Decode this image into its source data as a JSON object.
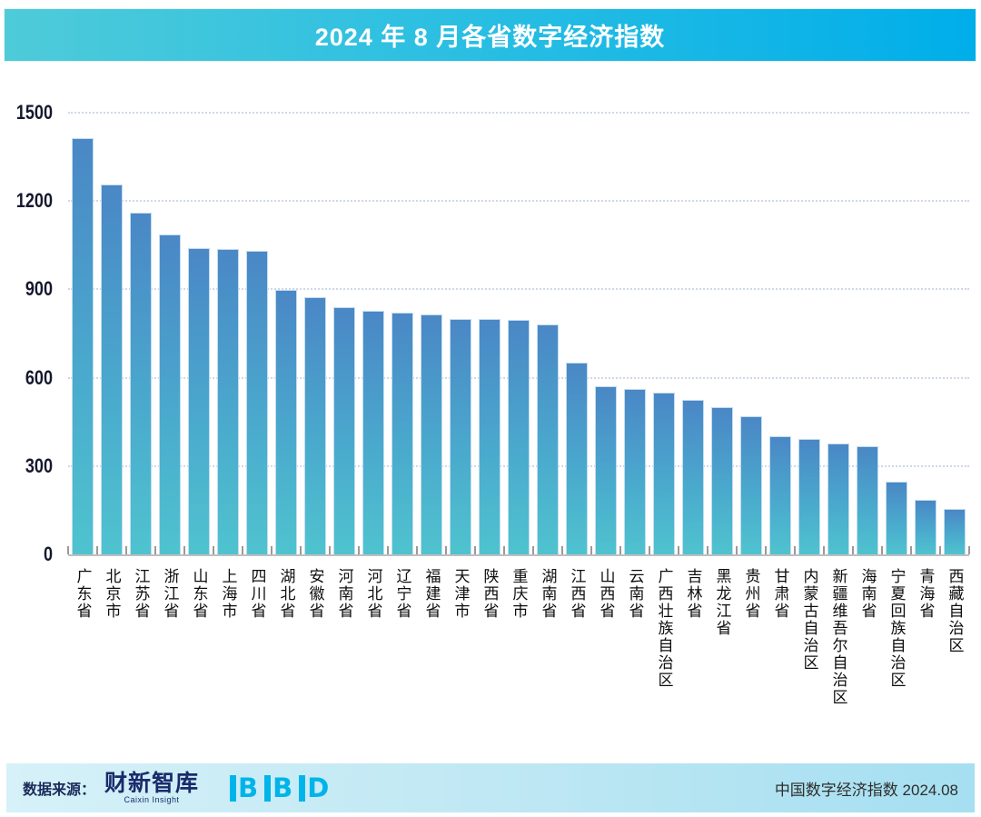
{
  "title": "2024 年 8 月各省数字经济指数",
  "footer": {
    "source_label": "数据来源：",
    "caixin_logo_cn": "财新智库",
    "caixin_logo_en": "Caixin Insight",
    "bbd_letters": [
      "B",
      "B",
      "D"
    ],
    "right_text": "中国数字经济指数 2024.08"
  },
  "colors": {
    "title_gradient_left": "#4ecbd9",
    "title_gradient_right": "#00aee9",
    "bar_top": "#4a87c6",
    "bar_bottom": "#4fc3cf",
    "gridline": "#c7d2e6",
    "footer_bg_left": "#d6f1f8",
    "footer_bg_right": "#a5dff1",
    "caixin_navy": "#1b2a6b",
    "bbd_cyan": "#00b4ea"
  },
  "chart_data": {
    "type": "bar",
    "title": "2024 年 8 月各省数字经济指数",
    "categories": [
      "广东省",
      "北京市",
      "江苏省",
      "浙江省",
      "山东省",
      "上海市",
      "四川省",
      "湖北省",
      "安徽省",
      "河南省",
      "河北省",
      "辽宁省",
      "福建省",
      "天津市",
      "陕西省",
      "重庆市",
      "湖南省",
      "江西省",
      "山西省",
      "云南省",
      "广西壮族自治区",
      "吉林省",
      "黑龙江省",
      "贵州省",
      "甘肃省",
      "内蒙古自治区",
      "新疆维吾尔自治区",
      "海南省",
      "宁夏回族自治区",
      "青海省",
      "西藏自治区"
    ],
    "values": [
      1415,
      1255,
      1160,
      1085,
      1040,
      1037,
      1030,
      897,
      873,
      840,
      828,
      820,
      815,
      800,
      798,
      795,
      782,
      650,
      572,
      562,
      550,
      526,
      500,
      470,
      401,
      393,
      377,
      368,
      247,
      185,
      155
    ],
    "xlabel": "",
    "ylabel": "",
    "ylim": [
      0,
      1500
    ],
    "yticks": [
      0,
      300,
      600,
      900,
      1200,
      1500
    ],
    "grid": "horizontal-dotted",
    "legend": "none"
  }
}
